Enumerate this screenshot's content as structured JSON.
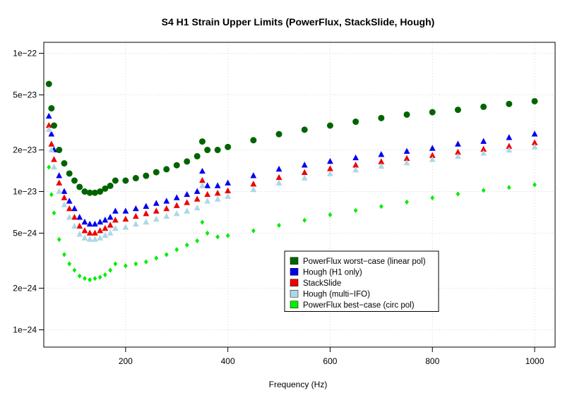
{
  "chart_data": {
    "type": "scatter",
    "title": "S4 H1 Strain Upper Limits (PowerFlux, StackSlide, Hough)",
    "xlabel": "Frequency (Hz)",
    "ylabel": "",
    "x_scale": "linear",
    "y_scale": "log",
    "xlim": [
      40,
      1040
    ],
    "ylim": [
      7.5e-25,
      1.2e-22
    ],
    "x_ticks": [
      200,
      400,
      600,
      800,
      1000
    ],
    "x_tick_labels": [
      "200",
      "400",
      "600",
      "800",
      "1000"
    ],
    "y_ticks": [
      1e-24,
      2e-24,
      5e-24,
      1e-23,
      2e-23,
      5e-23,
      1e-22
    ],
    "y_tick_labels": [
      "1e−24",
      "2e−24",
      "5e−24",
      "1e−23",
      "2e−23",
      "5e−23",
      "1e−22"
    ],
    "grid": true,
    "legend_position": "center-right",
    "series": [
      {
        "name": "PowerFlux worst−case (linear pol)",
        "marker": "circle",
        "color": "#006400",
        "x": [
          50,
          55,
          60,
          70,
          80,
          90,
          100,
          110,
          120,
          130,
          140,
          150,
          160,
          170,
          180,
          200,
          220,
          240,
          260,
          280,
          300,
          320,
          340,
          350,
          360,
          380,
          400,
          450,
          500,
          550,
          600,
          650,
          700,
          750,
          800,
          850,
          900,
          950,
          1000
        ],
        "y": [
          6e-23,
          4e-23,
          3e-23,
          2e-23,
          1.6e-23,
          1.35e-23,
          1.2e-23,
          1.08e-23,
          1e-23,
          9.8e-24,
          9.8e-24,
          1e-23,
          1.05e-23,
          1.1e-23,
          1.2e-23,
          1.2e-23,
          1.25e-23,
          1.3e-23,
          1.38e-23,
          1.45e-23,
          1.55e-23,
          1.65e-23,
          1.8e-23,
          2.3e-23,
          2e-23,
          2e-23,
          2.1e-23,
          2.35e-23,
          2.6e-23,
          2.8e-23,
          3e-23,
          3.2e-23,
          3.4e-23,
          3.6e-23,
          3.75e-23,
          3.9e-23,
          4.1e-23,
          4.3e-23,
          4.5e-23
        ]
      },
      {
        "name": "Hough (H1 only)",
        "marker": "triangle",
        "color": "#0000ee",
        "x": [
          50,
          55,
          60,
          70,
          80,
          90,
          100,
          110,
          120,
          130,
          140,
          150,
          160,
          170,
          180,
          200,
          220,
          240,
          260,
          280,
          300,
          320,
          340,
          350,
          360,
          380,
          400,
          450,
          500,
          550,
          600,
          650,
          700,
          750,
          800,
          850,
          900,
          950,
          1000
        ],
        "y": [
          3.5e-23,
          2.6e-23,
          2e-23,
          1.3e-23,
          1e-23,
          8.5e-24,
          7.5e-24,
          6.5e-24,
          6e-24,
          5.8e-24,
          5.8e-24,
          6e-24,
          6.2e-24,
          6.5e-24,
          7.2e-24,
          7.2e-24,
          7.5e-24,
          7.8e-24,
          8.2e-24,
          8.5e-24,
          9e-24,
          9.5e-24,
          1e-23,
          1.4e-23,
          1.1e-23,
          1.1e-23,
          1.15e-23,
          1.3e-23,
          1.45e-23,
          1.55e-23,
          1.65e-23,
          1.75e-23,
          1.85e-23,
          1.95e-23,
          2.05e-23,
          2.2e-23,
          2.3e-23,
          2.45e-23,
          2.6e-23
        ]
      },
      {
        "name": "StackSlide",
        "marker": "triangle",
        "color": "#ee0000",
        "x": [
          50,
          55,
          60,
          70,
          80,
          90,
          100,
          110,
          120,
          130,
          140,
          150,
          160,
          170,
          180,
          200,
          220,
          240,
          260,
          280,
          300,
          320,
          340,
          350,
          360,
          380,
          400,
          450,
          500,
          550,
          600,
          650,
          700,
          750,
          800,
          850,
          900,
          950,
          1000
        ],
        "y": [
          3e-23,
          2.2e-23,
          1.7e-23,
          1.15e-23,
          9e-24,
          7.5e-24,
          6.5e-24,
          5.6e-24,
          5.2e-24,
          5e-24,
          5e-24,
          5.2e-24,
          5.4e-24,
          5.7e-24,
          6.2e-24,
          6.3e-24,
          6.6e-24,
          6.9e-24,
          7.2e-24,
          7.5e-24,
          7.9e-24,
          8.3e-24,
          8.8e-24,
          1.2e-23,
          9.5e-24,
          9.7e-24,
          1.01e-23,
          1.13e-23,
          1.26e-23,
          1.37e-23,
          1.46e-23,
          1.55e-23,
          1.64e-23,
          1.73e-23,
          1.82e-23,
          1.92e-23,
          2.02e-23,
          2.12e-23,
          2.25e-23
        ]
      },
      {
        "name": "Hough (multi−IFO)",
        "marker": "triangle",
        "color": "#add8e6",
        "x": [
          50,
          55,
          60,
          70,
          80,
          90,
          100,
          110,
          120,
          130,
          140,
          150,
          160,
          170,
          180,
          200,
          220,
          240,
          260,
          280,
          300,
          320,
          340,
          350,
          360,
          380,
          400,
          450,
          500,
          550,
          600,
          650,
          700,
          750,
          800,
          850,
          900,
          950,
          1000
        ],
        "y": [
          2.8e-23,
          2e-23,
          1.5e-23,
          1e-23,
          8e-24,
          6.5e-24,
          5.6e-24,
          4.9e-24,
          4.6e-24,
          4.5e-24,
          4.5e-24,
          4.6e-24,
          4.8e-24,
          5e-24,
          5.4e-24,
          5.5e-24,
          5.8e-24,
          6e-24,
          6.3e-24,
          6.6e-24,
          6.9e-24,
          7.2e-24,
          7.6e-24,
          1.1e-23,
          8.5e-24,
          8.8e-24,
          9.2e-24,
          1.03e-23,
          1.15e-23,
          1.25e-23,
          1.34e-23,
          1.43e-23,
          1.52e-23,
          1.61e-23,
          1.7e-23,
          1.79e-23,
          1.89e-23,
          1.99e-23,
          2.1e-23
        ]
      },
      {
        "name": "PowerFlux best−case (circ pol)",
        "marker": "diamond",
        "color": "#00ee00",
        "x": [
          50,
          55,
          60,
          70,
          80,
          90,
          100,
          110,
          120,
          130,
          140,
          150,
          160,
          170,
          180,
          200,
          220,
          240,
          260,
          280,
          300,
          320,
          340,
          350,
          360,
          380,
          400,
          450,
          500,
          550,
          600,
          650,
          700,
          750,
          800,
          850,
          900,
          950,
          1000
        ],
        "y": [
          1.5e-23,
          9.5e-24,
          7e-24,
          4.5e-24,
          3.5e-24,
          3e-24,
          2.7e-24,
          2.45e-24,
          2.35e-24,
          2.3e-24,
          2.35e-24,
          2.4e-24,
          2.5e-24,
          2.7e-24,
          3e-24,
          2.9e-24,
          3e-24,
          3.1e-24,
          3.3e-24,
          3.5e-24,
          3.8e-24,
          4.1e-24,
          4.4e-24,
          6e-24,
          5e-24,
          4.7e-24,
          4.8e-24,
          5.2e-24,
          5.7e-24,
          6.2e-24,
          6.8e-24,
          7.3e-24,
          7.8e-24,
          8.4e-24,
          9e-24,
          9.6e-24,
          1.02e-23,
          1.07e-23,
          1.12e-23
        ]
      }
    ]
  }
}
